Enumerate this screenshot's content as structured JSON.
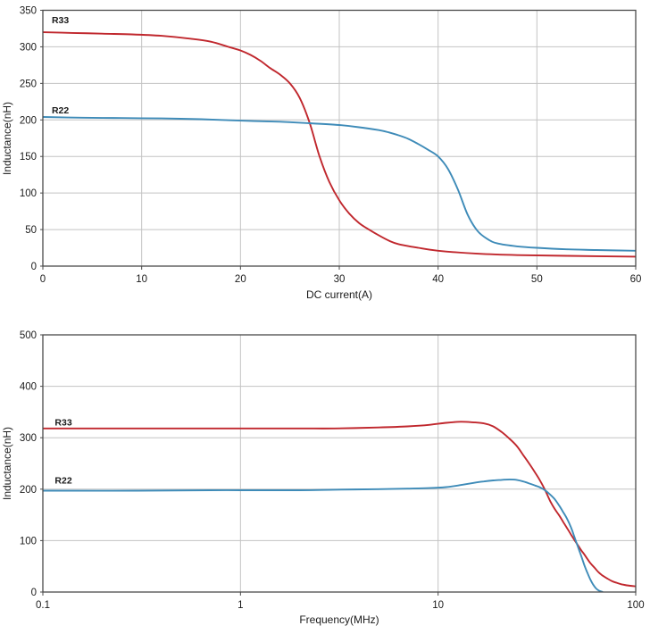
{
  "figure": {
    "background": "#ffffff",
    "description_colors": {
      "series_r33": "#c0272d",
      "series_r22": "#3e8bb8",
      "grid": "#c3c3c3",
      "frame": "#4a4a4a",
      "text": "#1a1a1a"
    }
  },
  "chart_data": [
    {
      "type": "line",
      "title": "",
      "xlabel": "DC current(A)",
      "ylabel": "Inductance(nH)",
      "xscale": "linear",
      "xlim": [
        0,
        60
      ],
      "ylim": [
        0,
        350
      ],
      "xticks": [
        0,
        10,
        20,
        30,
        40,
        50,
        60
      ],
      "xtick_labels": [
        "0",
        "10",
        "20",
        "30",
        "40",
        "50",
        "60"
      ],
      "yticks": [
        0,
        50,
        100,
        150,
        200,
        250,
        300,
        350
      ],
      "ytick_labels": [
        "0",
        "50",
        "100",
        "150",
        "200",
        "250",
        "300",
        "350"
      ],
      "grid": true,
      "legend_position": "inline-labels",
      "series": [
        {
          "name": "R33",
          "color": "#c0272d",
          "label_at": {
            "x": 0.9,
            "y": 332
          },
          "points": [
            [
              0,
              320
            ],
            [
              3,
              319
            ],
            [
              6,
              318
            ],
            [
              9,
              317
            ],
            [
              12,
              315
            ],
            [
              15,
              311
            ],
            [
              17,
              307
            ],
            [
              19,
              299
            ],
            [
              20,
              295
            ],
            [
              21,
              289
            ],
            [
              22,
              281
            ],
            [
              23,
              271
            ],
            [
              24,
              262
            ],
            [
              25,
              250
            ],
            [
              26,
              230
            ],
            [
              27,
              196
            ],
            [
              28,
              150
            ],
            [
              29,
              115
            ],
            [
              30,
              90
            ],
            [
              31,
              72
            ],
            [
              32,
              59
            ],
            [
              33,
              50
            ],
            [
              34,
              42
            ],
            [
              35,
              35
            ],
            [
              36,
              30
            ],
            [
              38,
              25
            ],
            [
              40,
              21
            ],
            [
              44,
              17
            ],
            [
              48,
              15
            ],
            [
              53,
              14
            ],
            [
              60,
              13
            ]
          ]
        },
        {
          "name": "R22",
          "color": "#3e8bb8",
          "label_at": {
            "x": 0.9,
            "y": 209
          },
          "points": [
            [
              0,
              204
            ],
            [
              4,
              203
            ],
            [
              8,
              202.5
            ],
            [
              12,
              202
            ],
            [
              16,
              201
            ],
            [
              20,
              199
            ],
            [
              24,
              197.5
            ],
            [
              27,
              195.5
            ],
            [
              30,
              193
            ],
            [
              32,
              190
            ],
            [
              34,
              186
            ],
            [
              35,
              183
            ],
            [
              36,
              179
            ],
            [
              37,
              174
            ],
            [
              38,
              167
            ],
            [
              39,
              159
            ],
            [
              40,
              150
            ],
            [
              41,
              133
            ],
            [
              42,
              105
            ],
            [
              43,
              70
            ],
            [
              44,
              48
            ],
            [
              45,
              37
            ],
            [
              46,
              31
            ],
            [
              48,
              27
            ],
            [
              50,
              25
            ],
            [
              53,
              23
            ],
            [
              56,
              22
            ],
            [
              60,
              21
            ]
          ]
        }
      ]
    },
    {
      "type": "line",
      "title": "",
      "xlabel": "Frequency(MHz)",
      "ylabel": "Inductance(nH)",
      "xscale": "log",
      "xlim": [
        0.1,
        100
      ],
      "ylim": [
        0,
        500
      ],
      "xticks": [
        0.1,
        1,
        10,
        100
      ],
      "xtick_labels": [
        "0.1",
        "1",
        "10",
        "100"
      ],
      "yticks": [
        0,
        100,
        200,
        300,
        400,
        500
      ],
      "ytick_labels": [
        "0",
        "100",
        "200",
        "300",
        "400",
        "500"
      ],
      "grid": true,
      "legend_position": "inline-labels",
      "series": [
        {
          "name": "R33",
          "color": "#c0272d",
          "label_at": {
            "x": 0.115,
            "y": 324
          },
          "points": [
            [
              0.1,
              318
            ],
            [
              0.3,
              318
            ],
            [
              0.7,
              318
            ],
            [
              1,
              318
            ],
            [
              2,
              318
            ],
            [
              3,
              318
            ],
            [
              5,
              320
            ],
            [
              7,
              322
            ],
            [
              9,
              325
            ],
            [
              11,
              329
            ],
            [
              13,
              331
            ],
            [
              15,
              330
            ],
            [
              17,
              328
            ],
            [
              19,
              322
            ],
            [
              21,
              311
            ],
            [
              23,
              298
            ],
            [
              25,
              284
            ],
            [
              27,
              266
            ],
            [
              29,
              249
            ],
            [
              31,
              232
            ],
            [
              33,
              215
            ],
            [
              35,
              196
            ],
            [
              37,
              176
            ],
            [
              39,
              161
            ],
            [
              41,
              149
            ],
            [
              43,
              136
            ],
            [
              45,
              124
            ],
            [
              47,
              112
            ],
            [
              49,
              101
            ],
            [
              51,
              91
            ],
            [
              53,
              81
            ],
            [
              55,
              73
            ],
            [
              57,
              64
            ],
            [
              59,
              56
            ],
            [
              62,
              47
            ],
            [
              65,
              38
            ],
            [
              68,
              32
            ],
            [
              72,
              26
            ],
            [
              76,
              21
            ],
            [
              80,
              18
            ],
            [
              85,
              15
            ],
            [
              90,
              13
            ],
            [
              100,
              11
            ]
          ]
        },
        {
          "name": "R22",
          "color": "#3e8bb8",
          "label_at": {
            "x": 0.115,
            "y": 211
          },
          "points": [
            [
              0.1,
              197
            ],
            [
              0.3,
              197
            ],
            [
              0.7,
              198
            ],
            [
              1,
              198
            ],
            [
              2,
              198
            ],
            [
              3,
              199
            ],
            [
              5,
              200
            ],
            [
              7,
              201
            ],
            [
              9,
              202
            ],
            [
              11,
              204
            ],
            [
              13,
              208
            ],
            [
              15,
              212
            ],
            [
              17,
              215
            ],
            [
              19,
              217
            ],
            [
              21,
              218
            ],
            [
              23,
              219
            ],
            [
              25,
              218
            ],
            [
              27,
              215
            ],
            [
              29,
              211
            ],
            [
              31,
              207
            ],
            [
              33,
              203
            ],
            [
              35,
              197
            ],
            [
              37,
              189
            ],
            [
              39,
              180
            ],
            [
              41,
              168
            ],
            [
              43,
              155
            ],
            [
              45,
              142
            ],
            [
              47,
              126
            ],
            [
              49,
              107
            ],
            [
              51,
              88
            ],
            [
              53,
              70
            ],
            [
              55,
              52
            ],
            [
              57,
              37
            ],
            [
              59,
              24
            ],
            [
              61,
              14
            ],
            [
              63,
              7
            ],
            [
              65,
              3
            ],
            [
              68,
              0
            ]
          ]
        }
      ]
    }
  ]
}
